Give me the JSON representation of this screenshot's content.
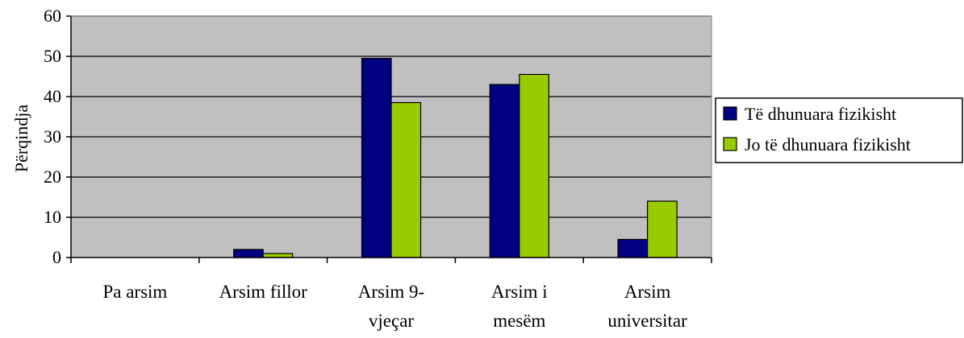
{
  "chart_data": {
    "type": "bar",
    "ylabel": "Përqindja",
    "xlabel": "",
    "ylim": [
      0,
      60
    ],
    "yticks": [
      0,
      10,
      20,
      30,
      40,
      50,
      60
    ],
    "grid": true,
    "legend_position": "right",
    "categories": [
      [
        "Pa arsim"
      ],
      [
        "Arsim fillor"
      ],
      [
        "Arsim 9-",
        "vjeçar"
      ],
      [
        "Arsim i",
        "mesëm"
      ],
      [
        "Arsim",
        "universitar"
      ]
    ],
    "series": [
      {
        "name": "Të dhunuara fizikisht",
        "color": "#000080",
        "values": [
          0,
          2,
          49.5,
          43,
          4.5
        ]
      },
      {
        "name": "Jo të dhunuara fizikisht",
        "color": "#99CC00",
        "values": [
          0,
          1,
          38.5,
          45.5,
          14
        ]
      }
    ],
    "plot_background": "#C0C0C0"
  }
}
